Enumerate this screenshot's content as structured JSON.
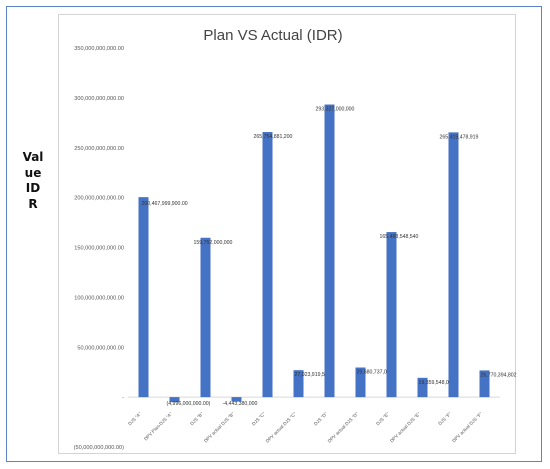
{
  "chart_data": {
    "type": "bar",
    "title": "Plan VS Actual (IDR)",
    "ylabel": "Value IDR",
    "ylim": [
      -50000000000,
      350000000000
    ],
    "yticks": [
      -50000000000,
      0,
      50000000000,
      100000000000,
      150000000000,
      200000000000,
      250000000000,
      300000000000,
      350000000000
    ],
    "ytick_labels": [
      "(50,000,000,000.00)",
      "-",
      "50,000,000,000.00",
      "100,000,000,000.00",
      "150,000,000,000.00",
      "200,000,000,000.00",
      "250,000,000,000.00",
      "300,000,000,000.00",
      "350,000,000,000.00"
    ],
    "categories": [
      "DJS \"A\"",
      "DPV Plan-DJS \"A\"",
      "DJS \"B\"",
      "DPV actual DJS \"B\"",
      "DJS \"C\"",
      "DPV actual DJS \"C\"",
      "DJS \"D\"",
      "DPV actual DJS \"D\"",
      "DJS \"E\"",
      "DPV actual DJS \"E\"",
      "DJS \"F\"",
      "DPV actual DJS \"F\""
    ],
    "values": [
      200467999900,
      -4996000000,
      159752000000,
      -4443380000,
      265754881200,
      27023919550,
      293327000000,
      29680737090,
      165468548540,
      19359548040,
      265419478919,
      26770394802
    ],
    "data_labels": [
      "200,467,999,900.00",
      "(4,996,000,000.00)",
      "159,752,000,000",
      "-4,443,380,000",
      "265,754,881,200",
      "27,023,919,550",
      "293,327,000,000",
      "29,680,737,090",
      "165,468,548,540",
      "19,359,548,040",
      "265,419,478,919",
      "26,770,394,802"
    ],
    "colors": {
      "bar": "#4472c4",
      "grid": "#d9d9d9"
    },
    "grid": false,
    "legend": "none"
  }
}
